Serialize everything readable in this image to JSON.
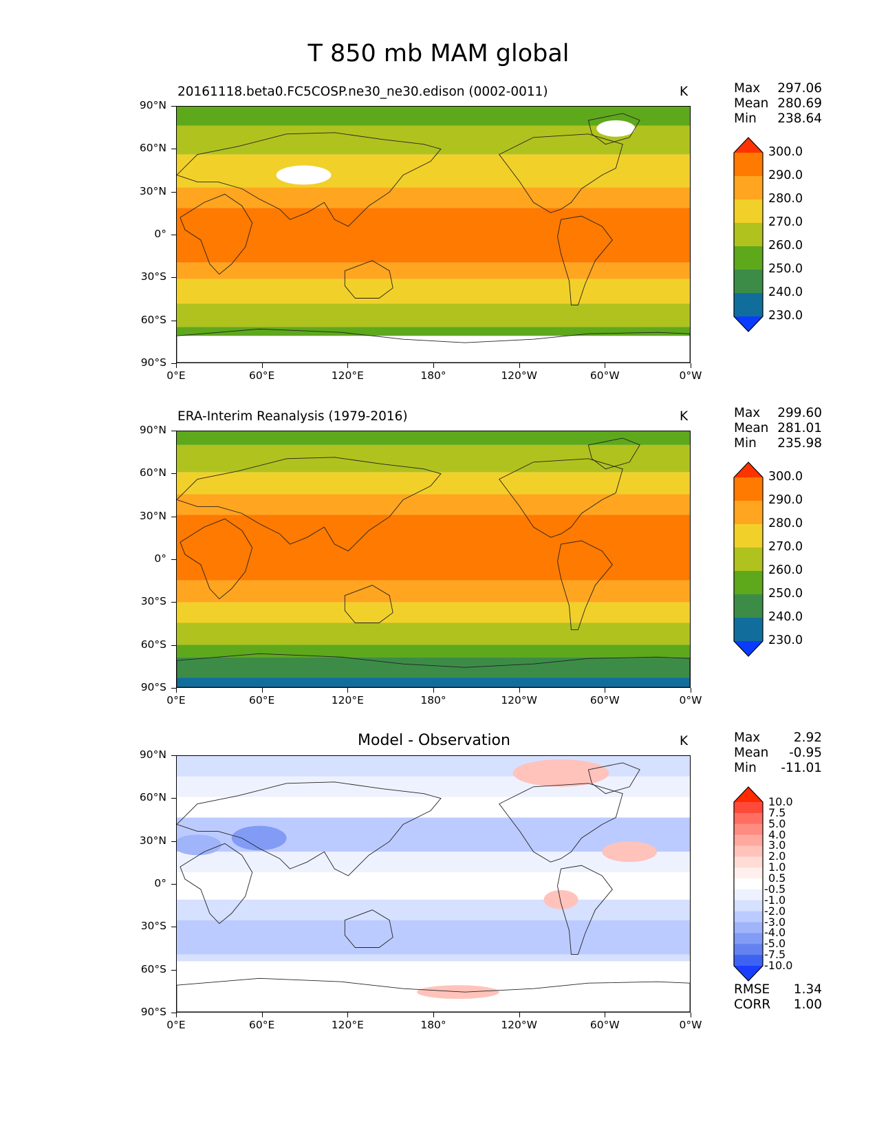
{
  "figure": {
    "title": "T 850 mb MAM global"
  },
  "axes": {
    "lat_ticks": [
      "90°N",
      "60°N",
      "30°N",
      "0°",
      "30°S",
      "60°S",
      "90°S"
    ],
    "lon_ticks": [
      "0°E",
      "60°E",
      "120°E",
      "180°",
      "120°W",
      "60°W",
      "0°W"
    ]
  },
  "panels": [
    {
      "id": "test",
      "title": "20161118.beta0.FC5COSP.ne30_ne30.edison (0002-0011)",
      "unit": "K",
      "stats": [
        {
          "label": "Max",
          "value": "297.06"
        },
        {
          "label": "Mean",
          "value": "280.69"
        },
        {
          "label": "Min",
          "value": "238.64"
        }
      ],
      "colorbar": {
        "labels": [
          "300.0",
          "290.0",
          "280.0",
          "270.0",
          "260.0",
          "250.0",
          "240.0",
          "230.0"
        ],
        "colors": [
          "#ff3300",
          "#ff7a00",
          "#ffa51f",
          "#f2d02a",
          "#b0c21e",
          "#5ea81c",
          "#3c8c48",
          "#116e9c",
          "#0a3cff"
        ]
      }
    },
    {
      "id": "reference",
      "title": "ERA-Interim Reanalysis (1979-2016)",
      "unit": "K",
      "stats": [
        {
          "label": "Max",
          "value": "299.60"
        },
        {
          "label": "Mean",
          "value": "281.01"
        },
        {
          "label": "Min",
          "value": "235.98"
        }
      ],
      "colorbar": {
        "labels": [
          "300.0",
          "290.0",
          "280.0",
          "270.0",
          "260.0",
          "250.0",
          "240.0",
          "230.0"
        ],
        "colors": [
          "#ff3300",
          "#ff7a00",
          "#ffa51f",
          "#f2d02a",
          "#b0c21e",
          "#5ea81c",
          "#3c8c48",
          "#116e9c",
          "#0a3cff"
        ]
      }
    },
    {
      "id": "difference",
      "title": "Model - Observation",
      "unit": "K",
      "stats": [
        {
          "label": "Max",
          "value": "2.92"
        },
        {
          "label": "Mean",
          "value": "-0.95"
        },
        {
          "label": "Min",
          "value": "-11.01"
        }
      ],
      "colorbar": {
        "labels": [
          "10.0",
          "7.5",
          "5.0",
          "4.0",
          "3.0",
          "2.0",
          "1.0",
          "0.5",
          "-0.5",
          "-1.0",
          "-2.0",
          "-3.0",
          "-4.0",
          "-5.0",
          "-7.5",
          "-10.0"
        ],
        "colors": [
          "#ff2a00",
          "#ff4a3a",
          "#ff6e60",
          "#ff8c80",
          "#ffa89e",
          "#ffc3bb",
          "#ffdcd6",
          "#fff0ee",
          "#ffffff",
          "#eef2ff",
          "#d6e0ff",
          "#bccbff",
          "#a0b4fa",
          "#829bf5",
          "#6482f0",
          "#3e62f2",
          "#1a3dff"
        ]
      },
      "error_stats": [
        {
          "label": "RMSE",
          "value": "1.34"
        },
        {
          "label": "CORR",
          "value": "1.00"
        }
      ]
    }
  ]
}
